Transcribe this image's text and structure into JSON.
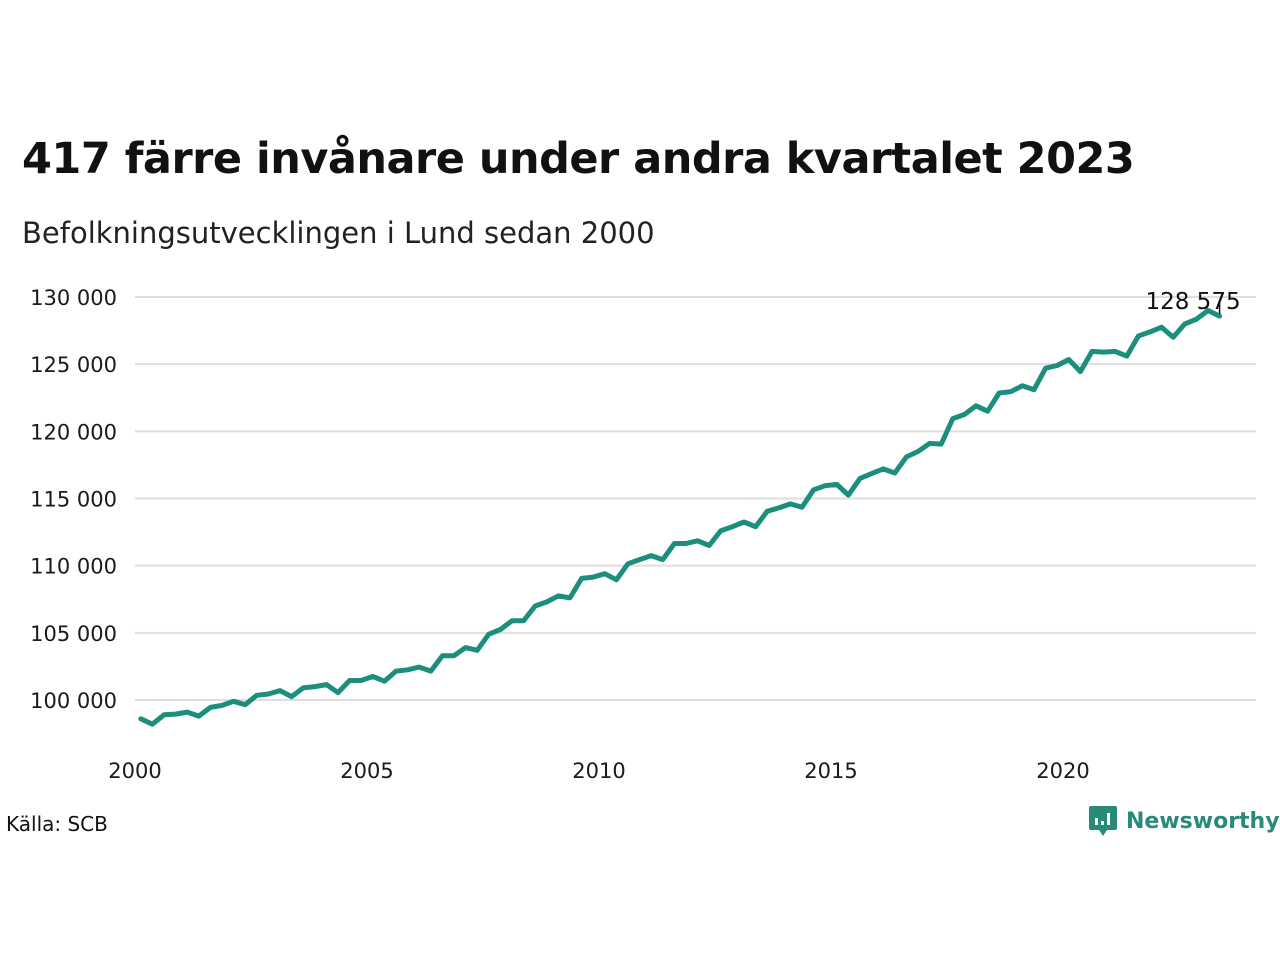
{
  "header": {
    "title": "417 färre invånare under andra kvartalet 2023",
    "subtitle": "Befolkningsutvecklingen i Lund sedan 2000"
  },
  "footer": {
    "source": "Källa: SCB",
    "brand": "Newsworthy"
  },
  "colors": {
    "line": "#1b8e7c",
    "grid": "#dedede",
    "brand": "#2a8a7a"
  },
  "chart_data": {
    "type": "line",
    "title": "417 färre invånare under andra kvartalet 2023",
    "subtitle": "Befolkningsutvecklingen i Lund sedan 2000",
    "xlabel": "",
    "ylabel": "",
    "grid": true,
    "x_ticks": [
      2000,
      2005,
      2010,
      2015,
      2020
    ],
    "x_tick_labels": [
      "2000",
      "2005",
      "2010",
      "2015",
      "2020"
    ],
    "y_ticks": [
      100000,
      105000,
      110000,
      115000,
      120000,
      125000,
      130000
    ],
    "y_tick_labels": [
      "100 000",
      "105 000",
      "110 000",
      "115 000",
      "120 000",
      "125 000",
      "130 000"
    ],
    "xlim": [
      2000,
      2023.5
    ],
    "ylim": [
      97000,
      130000
    ],
    "end_label": "128 575",
    "series": [
      {
        "color": "#1b8e7c",
        "x": [
          "2000 Q1",
          "2000 Q2",
          "2000 Q3",
          "2000 Q4",
          "2001 Q1",
          "2001 Q2",
          "2001 Q3",
          "2001 Q4",
          "2002 Q1",
          "2002 Q2",
          "2002 Q3",
          "2002 Q4",
          "2003 Q1",
          "2003 Q2",
          "2003 Q3",
          "2003 Q4",
          "2004 Q1",
          "2004 Q2",
          "2004 Q3",
          "2004 Q4",
          "2005 Q1",
          "2005 Q2",
          "2005 Q3",
          "2005 Q4",
          "2006 Q1",
          "2006 Q2",
          "2006 Q3",
          "2006 Q4",
          "2007 Q1",
          "2007 Q2",
          "2007 Q3",
          "2007 Q4",
          "2008 Q1",
          "2008 Q2",
          "2008 Q3",
          "2008 Q4",
          "2009 Q1",
          "2009 Q2",
          "2009 Q3",
          "2009 Q4",
          "2010 Q1",
          "2010 Q2",
          "2010 Q3",
          "2010 Q4",
          "2011 Q1",
          "2011 Q2",
          "2011 Q3",
          "2011 Q4",
          "2012 Q1",
          "2012 Q2",
          "2012 Q3",
          "2012 Q4",
          "2013 Q1",
          "2013 Q2",
          "2013 Q3",
          "2013 Q4",
          "2014 Q1",
          "2014 Q2",
          "2014 Q3",
          "2014 Q4",
          "2015 Q1",
          "2015 Q2",
          "2015 Q3",
          "2015 Q4",
          "2016 Q1",
          "2016 Q2",
          "2016 Q3",
          "2016 Q4",
          "2017 Q1",
          "2017 Q2",
          "2017 Q3",
          "2017 Q4",
          "2018 Q1",
          "2018 Q2",
          "2018 Q3",
          "2018 Q4",
          "2019 Q1",
          "2019 Q2",
          "2019 Q3",
          "2019 Q4",
          "2020 Q1",
          "2020 Q2",
          "2020 Q3",
          "2020 Q4",
          "2021 Q1",
          "2021 Q2",
          "2021 Q3",
          "2021 Q4",
          "2022 Q1",
          "2022 Q2",
          "2022 Q3",
          "2022 Q4",
          "2023 Q1",
          "2023 Q2"
        ],
        "values": [
          98600,
          98200,
          98900,
          98950,
          99100,
          98800,
          99450,
          99600,
          99900,
          99650,
          100350,
          100450,
          100700,
          100250,
          100900,
          101000,
          101150,
          100550,
          101450,
          101450,
          101750,
          101400,
          102150,
          102250,
          102450,
          102150,
          103300,
          103300,
          103900,
          103700,
          104900,
          105250,
          105900,
          105900,
          107000,
          107300,
          107750,
          107600,
          109050,
          109150,
          109400,
          108950,
          110150,
          110450,
          110750,
          110450,
          111650,
          111650,
          111850,
          111500,
          112600,
          112900,
          113250,
          112900,
          114050,
          114300,
          114600,
          114350,
          115650,
          115950,
          116050,
          115250,
          116500,
          116850,
          117200,
          116900,
          118100,
          118500,
          119100,
          119050,
          120950,
          121250,
          121900,
          121500,
          122850,
          122950,
          123400,
          123100,
          124700,
          124900,
          125350,
          124450,
          125950,
          125900,
          125950,
          125600,
          127100,
          127400,
          127750,
          127000,
          128000,
          128350,
          128992,
          128575
        ]
      }
    ]
  }
}
